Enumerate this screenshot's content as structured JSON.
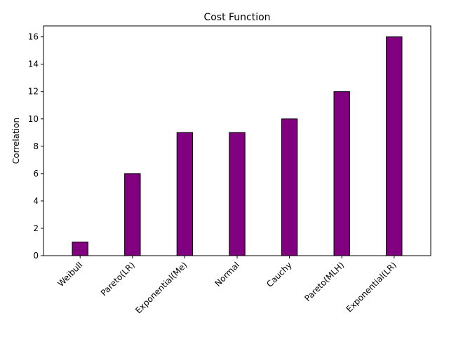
{
  "chart_data": {
    "type": "bar",
    "title": "Cost Function",
    "xlabel": "",
    "ylabel": "Correlation",
    "categories": [
      "Weibull",
      "Pareto(LR)",
      "Exponential(Me)",
      "Normal",
      "Cauchy",
      "Pareto(MLH)",
      "Exponential(LR)"
    ],
    "values": [
      1,
      6,
      9,
      9,
      10,
      12,
      16
    ],
    "ylim": [
      0,
      16.8
    ],
    "yticks": [
      0,
      2,
      4,
      6,
      8,
      10,
      12,
      14,
      16
    ],
    "grid": false,
    "legend": "none",
    "colors": {
      "bar_fill": "#800080",
      "bar_edge": "#000000"
    }
  }
}
